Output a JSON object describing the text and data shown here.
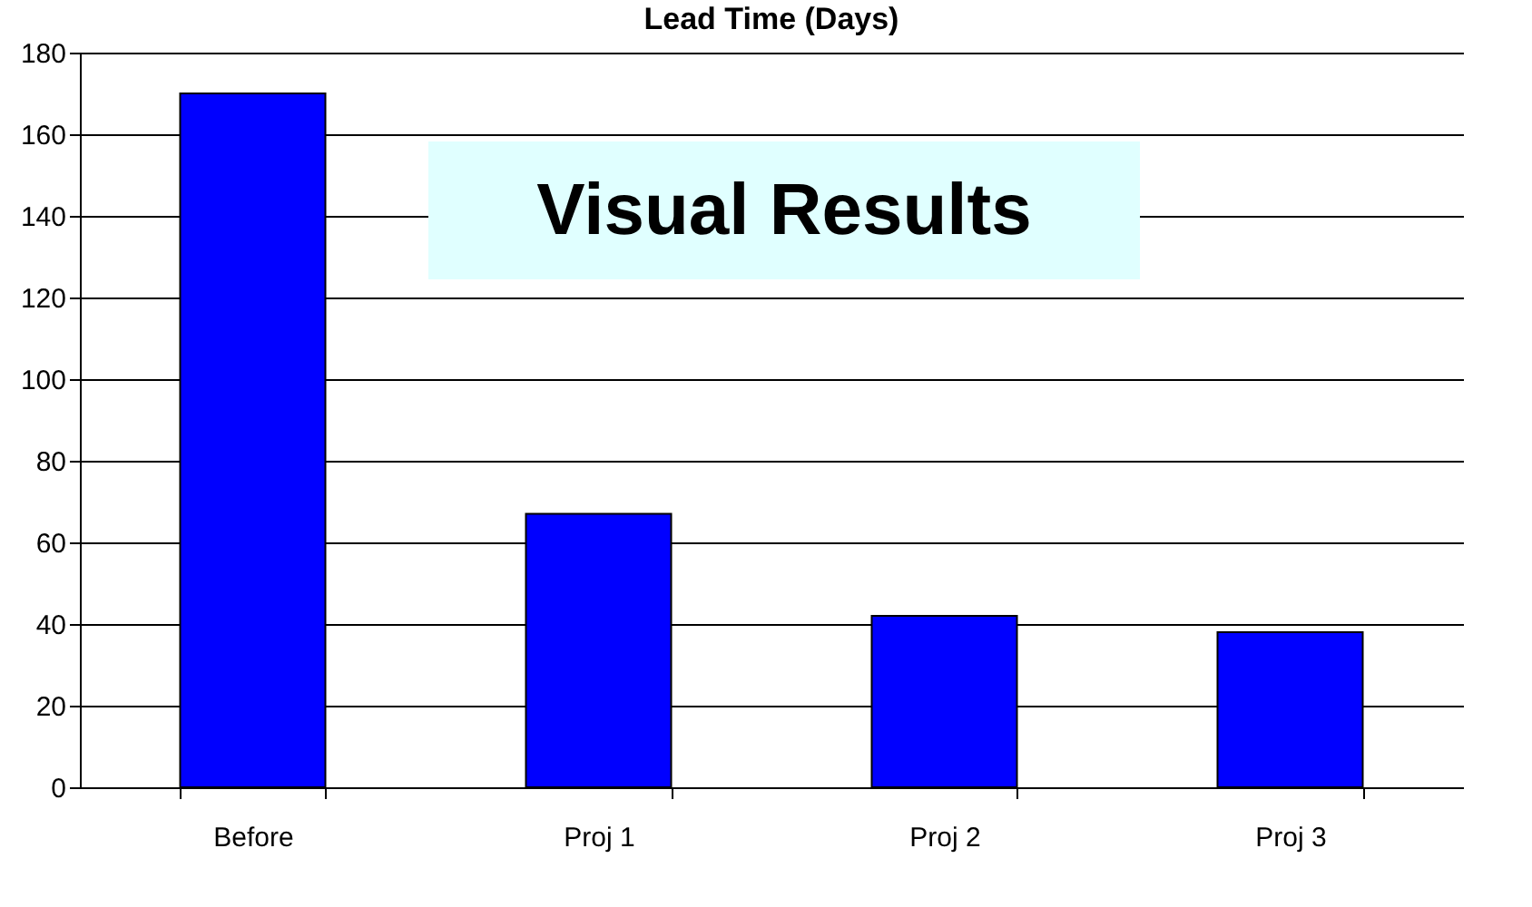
{
  "chart_data": {
    "type": "bar",
    "title": "Lead Time (Days)",
    "categories": [
      "Before",
      "Proj 1",
      "Proj 2",
      "Proj 3"
    ],
    "values": [
      170,
      67,
      42,
      38
    ],
    "color": "#0000ff",
    "ylim": [
      0,
      180
    ],
    "yticks": [
      0,
      20,
      40,
      60,
      80,
      100,
      120,
      140,
      160,
      180
    ],
    "grid": "y",
    "annotations": [
      "Visual Results"
    ]
  }
}
